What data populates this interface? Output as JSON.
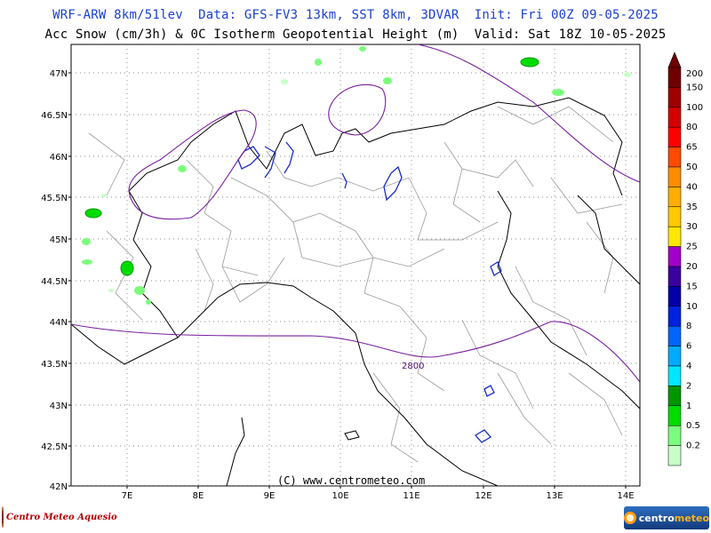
{
  "header": {
    "line1": "WRF-ARW 8km/51lev  Data: GFS-FV3 13km, SST 8km, 3DVAR  Init: Fri 00Z 09-05-2025",
    "line2": "Acc Snow (cm/3h) & 0C Isotherm Geopotential Height (m)  Valid: Sat 18Z 10-05-2025"
  },
  "map": {
    "lat_labels": [
      "47N",
      "46.5N",
      "46N",
      "45.5N",
      "45N",
      "44.5N",
      "44N",
      "43.5N",
      "43N",
      "42.5N",
      "42N"
    ],
    "lon_labels": [
      "7E",
      "8E",
      "9E",
      "10E",
      "11E",
      "12E",
      "13E",
      "14E"
    ],
    "credit": "(C) www.centrometeo.com",
    "contour_label": "2800",
    "colors": {
      "isotherm": "#7a1f9e",
      "borders": "#000000",
      "provinces": "#9a9a9a",
      "lakes": "#1a2acc",
      "grid": "#555555"
    }
  },
  "legend": {
    "levels": [
      {
        "label": "200",
        "color": "#6e0000"
      },
      {
        "label": "150",
        "color": "#9e0000"
      },
      {
        "label": "100",
        "color": "#d40000"
      },
      {
        "label": "80",
        "color": "#ff0000"
      },
      {
        "label": "65",
        "color": "#ff4a00"
      },
      {
        "label": "50",
        "color": "#ff8c00"
      },
      {
        "label": "40",
        "color": "#ffad00"
      },
      {
        "label": "35",
        "color": "#ffc800"
      },
      {
        "label": "30",
        "color": "#ffe600"
      },
      {
        "label": "25",
        "color": "#a000c8"
      },
      {
        "label": "20",
        "color": "#3a00a0"
      },
      {
        "label": "15",
        "color": "#0000a8"
      },
      {
        "label": "10",
        "color": "#0022e0"
      },
      {
        "label": "8",
        "color": "#0064ff"
      },
      {
        "label": "6",
        "color": "#00aaff"
      },
      {
        "label": "4",
        "color": "#00e6ff"
      },
      {
        "label": "2",
        "color": "#009600"
      },
      {
        "label": "1",
        "color": "#00dc00"
      },
      {
        "label": "0.5",
        "color": "#7cfc7c"
      },
      {
        "label": "0.2",
        "color": "#c8ffc8"
      }
    ]
  },
  "logos": {
    "left_text": "Centro Meteo Aquesio",
    "right_text_a": "centro",
    "right_text_b": "meteo"
  }
}
